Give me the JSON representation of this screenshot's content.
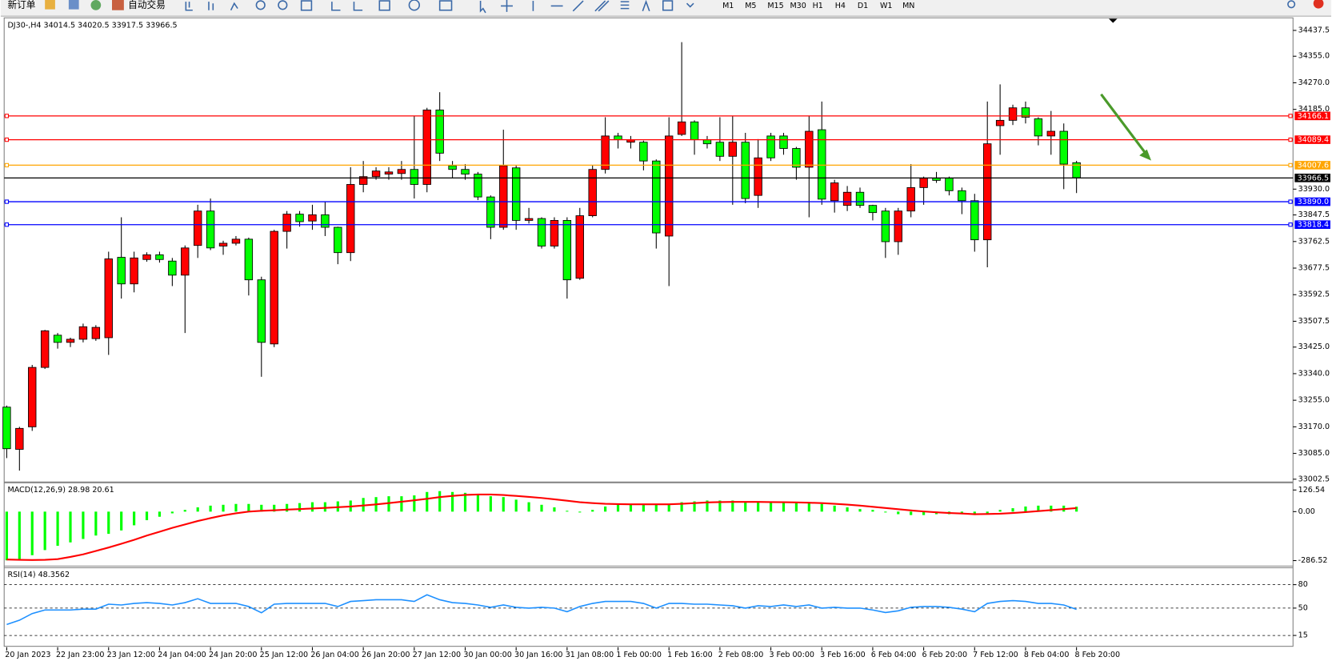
{
  "toolbar": {
    "new_order": "新订单",
    "auto_trade": "自动交易",
    "timeframes": [
      "M1",
      "M5",
      "M15",
      "M30",
      "H1",
      "H4",
      "D1",
      "W1",
      "MN"
    ]
  },
  "chart_data": [
    {
      "type": "candlestick",
      "title": "DJ30-,H4  34014.5 34020.5 33917.5 33966.5",
      "categories": [
        "20 Jan 2023",
        null,
        null,
        null,
        "22 Jan 23:00",
        null,
        null,
        null,
        "23 Jan 12:00",
        null,
        null,
        null,
        "24 Jan 04:00",
        null,
        null,
        null,
        "24 Jan 20:00",
        null,
        null,
        null,
        "25 Jan 12:00",
        null,
        null,
        null,
        "26 Jan 04:00",
        null,
        null,
        null,
        "26 Jan 20:00",
        null,
        null,
        null,
        "27 Jan 12:00",
        null,
        null,
        null,
        "30 Jan 00:00",
        null,
        null,
        null,
        "30 Jan 16:00",
        null,
        null,
        null,
        "31 Jan 08:00",
        null,
        null,
        null,
        "1 Feb 00:00",
        null,
        null,
        null,
        "1 Feb 16:00",
        null,
        null,
        null,
        "2 Feb 08:00",
        null,
        null,
        null,
        "3 Feb 00:00",
        null,
        null,
        null,
        "3 Feb 16:00",
        null,
        null,
        null,
        "6 Feb 04:00",
        null,
        null,
        null,
        "6 Feb 20:00",
        null,
        null,
        null,
        "7 Feb 12:00",
        null,
        null,
        null,
        "8 Feb 04:00",
        null,
        null,
        null,
        "8 Feb 20:00"
      ],
      "open": [
        33233,
        33098,
        33170,
        33360,
        33463,
        33440,
        33450,
        33452,
        33455,
        33712,
        33627,
        33705,
        33720,
        33700,
        33655,
        33750,
        33860,
        33748,
        33757,
        33770,
        33640,
        33435,
        33795,
        33850,
        33828,
        33848,
        33808,
        33727,
        33945,
        33970,
        33978,
        33980,
        33993,
        33945,
        34183,
        34005,
        33993,
        33978,
        33905,
        33808,
        33998,
        33830,
        33836,
        33748,
        33830,
        33645,
        33845,
        33993,
        34100,
        34080,
        34080,
        34020,
        33780,
        34105,
        34145,
        34088,
        34080,
        34035,
        34080,
        33910,
        34100,
        34100,
        34060,
        34000,
        34120,
        33893,
        33878,
        33920,
        33878,
        33860,
        33762,
        33860,
        33935,
        33965,
        33965,
        33925,
        33893,
        33768,
        34133,
        34150,
        34190,
        34155,
        34100,
        34115,
        34014.5
      ],
      "high": [
        33238,
        33170,
        33368,
        33480,
        33470,
        33455,
        33500,
        33495,
        33730,
        33840,
        33730,
        33728,
        33730,
        33710,
        33750,
        33880,
        33900,
        33765,
        33780,
        33775,
        33650,
        33800,
        33860,
        33860,
        33880,
        33890,
        33810,
        34000,
        34020,
        34000,
        34000,
        34020,
        34165,
        34190,
        34240,
        34020,
        34010,
        33985,
        33910,
        34120,
        34005,
        33870,
        33840,
        33840,
        33840,
        33870,
        34005,
        34160,
        34110,
        34100,
        34085,
        34025,
        34160,
        34400,
        34150,
        34100,
        34160,
        34165,
        34110,
        34090,
        34110,
        34110,
        34065,
        34165,
        34210,
        33960,
        33940,
        33935,
        33880,
        33870,
        33870,
        34010,
        33970,
        33985,
        33970,
        33935,
        33915,
        34210,
        34265,
        34200,
        34210,
        34160,
        34180,
        34140,
        34020.5
      ],
      "low": [
        33070,
        33030,
        33157,
        33355,
        33420,
        33425,
        33440,
        33445,
        33400,
        33580,
        33600,
        33698,
        33695,
        33620,
        33470,
        33710,
        33735,
        33720,
        33750,
        33590,
        33330,
        33425,
        33740,
        33810,
        33800,
        33780,
        33690,
        33700,
        33920,
        33960,
        33960,
        33960,
        33900,
        33920,
        34020,
        33965,
        33960,
        33895,
        33770,
        33800,
        33800,
        33820,
        33740,
        33740,
        33580,
        33640,
        33840,
        33980,
        34060,
        34060,
        33990,
        33740,
        33620,
        34100,
        34040,
        34060,
        34020,
        33880,
        33885,
        33870,
        34020,
        34040,
        33960,
        33840,
        33880,
        33855,
        33860,
        33870,
        33830,
        33710,
        33720,
        33840,
        33880,
        33950,
        33910,
        33850,
        33730,
        33680,
        34040,
        34135,
        34140,
        34070,
        34040,
        33930,
        33917.5
      ],
      "close": [
        33100,
        33165,
        33360,
        33477,
        33440,
        33450,
        33490,
        33488,
        33707,
        33627,
        33710,
        33720,
        33705,
        33655,
        33742,
        33860,
        33742,
        33757,
        33770,
        33640,
        33440,
        33795,
        33850,
        33826,
        33848,
        33808,
        33727,
        33945,
        33970,
        33988,
        33985,
        33993,
        33945,
        34183,
        34045,
        33993,
        33978,
        33905,
        33808,
        34005,
        33830,
        33836,
        33748,
        33830,
        33640,
        33845,
        33993,
        34100,
        34088,
        34088,
        34020,
        33790,
        34100,
        34145,
        34088,
        34075,
        34035,
        34080,
        33900,
        34030,
        34030,
        34060,
        34000,
        34115,
        33898,
        33950,
        33920,
        33878,
        33855,
        33762,
        33860,
        33935,
        33965,
        33958,
        33925,
        33893,
        33768,
        34075,
        34150,
        34190,
        34160,
        34100,
        34115,
        34010,
        33966.5
      ],
      "up_color": "#ff0000",
      "down_color": "#00ff00",
      "ylim": [
        32995,
        34475
      ],
      "yticks": [
        {
          "value": 34437.5,
          "label": "34437.5"
        },
        {
          "value": 34355,
          "label": "34355.0"
        },
        {
          "value": 34270,
          "label": "34270.0"
        },
        {
          "value": 34185,
          "label": "34185.0"
        },
        {
          "value": 33930,
          "label": "33930.0"
        },
        {
          "value": 33847.5,
          "label": "33847.5"
        },
        {
          "value": 33762.5,
          "label": "33762.5"
        },
        {
          "value": 33677.5,
          "label": "33677.5"
        },
        {
          "value": 33592.5,
          "label": "33592.5"
        },
        {
          "value": 33507.5,
          "label": "33507.5"
        },
        {
          "value": 33425,
          "label": "33425.0"
        },
        {
          "value": 33340,
          "label": "33340.0"
        },
        {
          "value": 33255,
          "label": "33255.0"
        },
        {
          "value": 33170,
          "label": "33170.0"
        },
        {
          "value": 33085,
          "label": "33085.0"
        },
        {
          "value": 33002.5,
          "label": "33002.5"
        }
      ],
      "levels": [
        {
          "value": 34166.1,
          "color": "#ff0000"
        },
        {
          "value": 34089.4,
          "color": "#ff0000"
        },
        {
          "value": 34007.6,
          "color": "#ffa500"
        },
        {
          "value": 33966.5,
          "color": "#000000"
        },
        {
          "value": 33890,
          "label": "33890.0",
          "color": "#0000ff"
        },
        {
          "value": 33818.4,
          "color": "#0000ff"
        }
      ],
      "grid": false
    },
    {
      "type": "macd",
      "title": "MACD(12,26,9) 28.98 20.61",
      "histogram": [
        -285,
        -280,
        -255,
        -225,
        -200,
        -180,
        -160,
        -140,
        -130,
        -110,
        -80,
        -50,
        -30,
        -10,
        10,
        25,
        35,
        40,
        45,
        45,
        40,
        40,
        45,
        50,
        55,
        55,
        60,
        65,
        80,
        85,
        90,
        90,
        95,
        115,
        120,
        115,
        110,
        100,
        90,
        85,
        70,
        55,
        40,
        25,
        5,
        -5,
        10,
        30,
        40,
        45,
        45,
        40,
        40,
        55,
        60,
        65,
        65,
        65,
        60,
        60,
        55,
        55,
        55,
        55,
        45,
        35,
        25,
        15,
        10,
        -5,
        -15,
        -20,
        -20,
        -15,
        -15,
        -15,
        -20,
        -10,
        10,
        20,
        30,
        35,
        35,
        35,
        28.98
      ],
      "signal": [
        -280,
        -282,
        -283,
        -282,
        -278,
        -265,
        -250,
        -230,
        -210,
        -188,
        -165,
        -140,
        -118,
        -95,
        -75,
        -55,
        -38,
        -22,
        -10,
        0,
        5,
        8,
        12,
        15,
        18,
        22,
        26,
        30,
        36,
        42,
        50,
        58,
        66,
        75,
        85,
        92,
        98,
        100,
        100,
        97,
        92,
        86,
        80,
        72,
        64,
        55,
        50,
        46,
        44,
        43,
        43,
        43,
        43,
        46,
        50,
        54,
        56,
        57,
        57,
        57,
        56,
        55,
        54,
        52,
        50,
        46,
        41,
        35,
        28,
        21,
        14,
        7,
        1,
        -4,
        -8,
        -11,
        -15,
        -14,
        -12,
        -8,
        -3,
        3,
        9,
        15,
        20.61
      ],
      "histogram_color": "#00ff00",
      "signal_color": "#ff0000",
      "ylim": [
        -311,
        166
      ],
      "yticks": [
        126.54,
        {
          "value": 0,
          "label": "0.00"
        },
        -286.52
      ]
    },
    {
      "type": "line",
      "title": "RSI(14) 48.3562",
      "values": [
        29,
        34.5,
        43,
        47.6,
        47.6,
        47.6,
        48.7,
        48.7,
        55,
        54,
        56,
        57,
        56,
        54,
        57,
        62,
        56,
        56,
        56,
        52,
        44,
        55,
        56,
        56,
        56,
        56,
        52,
        58.5,
        59.6,
        60.7,
        60.7,
        60.7,
        58.5,
        67,
        60.7,
        57,
        56,
        54,
        51,
        54,
        51,
        50,
        51,
        50,
        45.4,
        52,
        56,
        58.5,
        58.5,
        58.5,
        56,
        50,
        56,
        56,
        55,
        55,
        54,
        53,
        50,
        53,
        52,
        54,
        52,
        54,
        50,
        51,
        50,
        50,
        47.6,
        44.3,
        46.5,
        51,
        52,
        52,
        51,
        48.7,
        45.4,
        56,
        58.5,
        59.6,
        58.5,
        56,
        56,
        54,
        48.3562
      ],
      "color": "#1e90ff",
      "ylim": [
        0,
        100
      ],
      "yticks": [
        80,
        50,
        15
      ]
    }
  ]
}
